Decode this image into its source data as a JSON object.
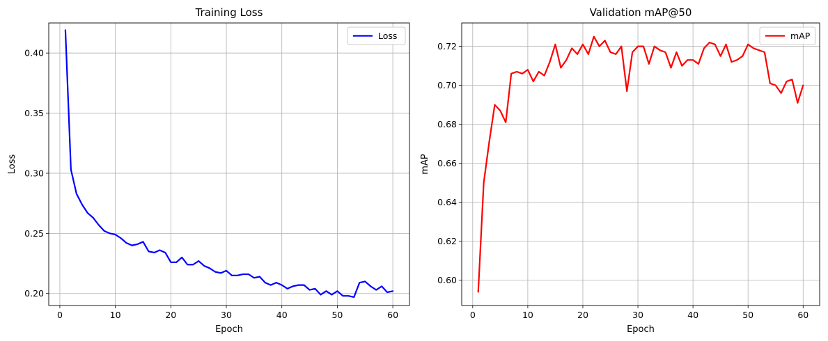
{
  "chart_data": [
    {
      "type": "line",
      "title": "Training Loss",
      "xlabel": "Epoch",
      "ylabel": "Loss",
      "xlim": [
        -2,
        63
      ],
      "ylim": [
        0.19,
        0.425
      ],
      "xticks": [
        0,
        10,
        20,
        30,
        40,
        50,
        60
      ],
      "xtick_labels": [
        "0",
        "10",
        "20",
        "30",
        "40",
        "50",
        "60"
      ],
      "yticks": [
        0.2,
        0.25,
        0.3,
        0.35,
        0.4
      ],
      "ytick_labels": [
        "0.20",
        "0.25",
        "0.30",
        "0.35",
        "0.40"
      ],
      "grid": true,
      "legend_position": "top-right",
      "x": [
        1,
        2,
        3,
        4,
        5,
        6,
        7,
        8,
        9,
        10,
        11,
        12,
        13,
        14,
        15,
        16,
        17,
        18,
        19,
        20,
        21,
        22,
        23,
        24,
        25,
        26,
        27,
        28,
        29,
        30,
        31,
        32,
        33,
        34,
        35,
        36,
        37,
        38,
        39,
        40,
        41,
        42,
        43,
        44,
        45,
        46,
        47,
        48,
        49,
        50,
        51,
        52,
        53,
        54,
        55,
        56,
        57,
        58,
        59,
        60
      ],
      "series": [
        {
          "name": "Loss",
          "color": "#0000ff",
          "values": [
            0.419,
            0.303,
            0.283,
            0.274,
            0.267,
            0.263,
            0.257,
            0.252,
            0.25,
            0.249,
            0.246,
            0.242,
            0.24,
            0.241,
            0.243,
            0.235,
            0.234,
            0.236,
            0.234,
            0.226,
            0.226,
            0.23,
            0.224,
            0.224,
            0.227,
            0.223,
            0.221,
            0.218,
            0.217,
            0.219,
            0.215,
            0.215,
            0.216,
            0.216,
            0.213,
            0.214,
            0.209,
            0.207,
            0.209,
            0.207,
            0.204,
            0.206,
            0.207,
            0.207,
            0.203,
            0.204,
            0.199,
            0.202,
            0.199,
            0.202,
            0.198,
            0.198,
            0.197,
            0.209,
            0.21,
            0.206,
            0.203,
            0.206,
            0.201,
            0.202
          ]
        }
      ]
    },
    {
      "type": "line",
      "title": "Validation mAP@50",
      "xlabel": "Epoch",
      "ylabel": "mAP",
      "xlim": [
        -2,
        63
      ],
      "ylim": [
        0.587,
        0.732
      ],
      "xticks": [
        0,
        10,
        20,
        30,
        40,
        50,
        60
      ],
      "xtick_labels": [
        "0",
        "10",
        "20",
        "30",
        "40",
        "50",
        "60"
      ],
      "yticks": [
        0.6,
        0.62,
        0.64,
        0.66,
        0.68,
        0.7,
        0.72
      ],
      "ytick_labels": [
        "0.60",
        "0.62",
        "0.64",
        "0.66",
        "0.68",
        "0.70",
        "0.72"
      ],
      "grid": true,
      "legend_position": "top-right",
      "x": [
        1,
        2,
        3,
        4,
        5,
        6,
        7,
        8,
        9,
        10,
        11,
        12,
        13,
        14,
        15,
        16,
        17,
        18,
        19,
        20,
        21,
        22,
        23,
        24,
        25,
        26,
        27,
        28,
        29,
        30,
        31,
        32,
        33,
        34,
        35,
        36,
        37,
        38,
        39,
        40,
        41,
        42,
        43,
        44,
        45,
        46,
        47,
        48,
        49,
        50,
        51,
        52,
        53,
        54,
        55,
        56,
        57,
        58,
        59,
        60
      ],
      "series": [
        {
          "name": "mAP",
          "color": "#ff0000",
          "values": [
            0.594,
            0.65,
            0.671,
            0.69,
            0.687,
            0.681,
            0.706,
            0.707,
            0.706,
            0.708,
            0.702,
            0.707,
            0.705,
            0.712,
            0.721,
            0.709,
            0.713,
            0.719,
            0.716,
            0.721,
            0.716,
            0.725,
            0.72,
            0.723,
            0.717,
            0.716,
            0.72,
            0.697,
            0.717,
            0.72,
            0.72,
            0.711,
            0.72,
            0.718,
            0.717,
            0.709,
            0.717,
            0.71,
            0.713,
            0.713,
            0.711,
            0.719,
            0.722,
            0.721,
            0.715,
            0.721,
            0.712,
            0.713,
            0.715,
            0.721,
            0.719,
            0.718,
            0.717,
            0.701,
            0.7,
            0.696,
            0.702,
            0.703,
            0.691,
            0.7
          ]
        }
      ]
    }
  ]
}
